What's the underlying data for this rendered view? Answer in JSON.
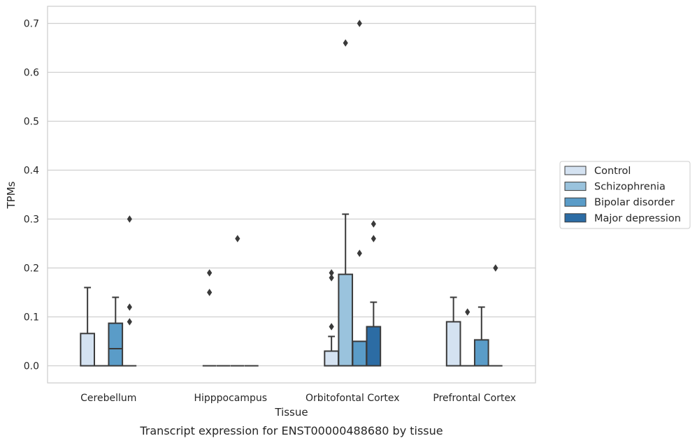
{
  "chart_data": {
    "type": "box",
    "caption": "Transcript expression for ENST00000488680 by tissue",
    "xlabel": "Tissue",
    "ylabel": "TPMs",
    "ylim": [
      -0.035,
      0.735
    ],
    "yticks": [
      0.0,
      0.1,
      0.2,
      0.3,
      0.4,
      0.5,
      0.6,
      0.7
    ],
    "ytick_labels": [
      "0.0",
      "0.1",
      "0.2",
      "0.3",
      "0.4",
      "0.5",
      "0.6",
      "0.7"
    ],
    "grid": true,
    "legend_position": "right",
    "categories": [
      "Cerebellum",
      "Hipppocampus",
      "Orbitofontal Cortex",
      "Prefrontal Cortex"
    ],
    "series": [
      {
        "name": "Control",
        "color": "#d4e2f1",
        "boxes": [
          {
            "min": 0.0,
            "q1": 0.0,
            "median": 0.0,
            "q3": 0.066,
            "max": 0.16,
            "outliers": []
          },
          {
            "min": 0.0,
            "q1": 0.0,
            "median": 0.0,
            "q3": 0.0,
            "max": 0.0,
            "outliers": [
              0.15,
              0.19
            ]
          },
          {
            "min": 0.0,
            "q1": 0.0,
            "median": 0.0,
            "q3": 0.03,
            "max": 0.06,
            "outliers": [
              0.08,
              0.18,
              0.19
            ]
          },
          {
            "min": 0.0,
            "q1": 0.0,
            "median": 0.0,
            "q3": 0.09,
            "max": 0.14,
            "outliers": []
          }
        ]
      },
      {
        "name": "Schizophrenia",
        "color": "#9ac3dd",
        "boxes": [
          {
            "min": 0.0,
            "q1": 0.0,
            "median": 0.0,
            "q3": 0.0,
            "max": 0.0,
            "outliers": []
          },
          {
            "min": 0.0,
            "q1": 0.0,
            "median": 0.0,
            "q3": 0.0,
            "max": 0.0,
            "outliers": []
          },
          {
            "min": 0.0,
            "q1": 0.0,
            "median": 0.0,
            "q3": 0.187,
            "max": 0.31,
            "outliers": [
              0.66
            ]
          },
          {
            "min": 0.0,
            "q1": 0.0,
            "median": 0.0,
            "q3": 0.0,
            "max": 0.0,
            "outliers": [
              0.11
            ]
          }
        ]
      },
      {
        "name": "Bipolar disorder",
        "color": "#5a9cc8",
        "boxes": [
          {
            "min": 0.0,
            "q1": 0.0,
            "median": 0.035,
            "q3": 0.087,
            "max": 0.14,
            "outliers": []
          },
          {
            "min": 0.0,
            "q1": 0.0,
            "median": 0.0,
            "q3": 0.0,
            "max": 0.0,
            "outliers": [
              0.26
            ]
          },
          {
            "min": 0.0,
            "q1": 0.0,
            "median": 0.0,
            "q3": 0.05,
            "max": 0.05,
            "outliers": [
              0.23,
              0.7
            ]
          },
          {
            "min": 0.0,
            "q1": 0.0,
            "median": 0.0,
            "q3": 0.053,
            "max": 0.12,
            "outliers": []
          }
        ]
      },
      {
        "name": "Major depression",
        "color": "#2c6ca4",
        "boxes": [
          {
            "min": 0.0,
            "q1": 0.0,
            "median": 0.0,
            "q3": 0.0,
            "max": 0.0,
            "outliers": [
              0.09,
              0.12,
              0.3
            ]
          },
          {
            "min": 0.0,
            "q1": 0.0,
            "median": 0.0,
            "q3": 0.0,
            "max": 0.0,
            "outliers": []
          },
          {
            "min": 0.0,
            "q1": 0.0,
            "median": 0.0,
            "q3": 0.08,
            "max": 0.13,
            "outliers": [
              0.26,
              0.29
            ]
          },
          {
            "min": 0.0,
            "q1": 0.0,
            "median": 0.0,
            "q3": 0.0,
            "max": 0.0,
            "outliers": [
              0.2
            ]
          }
        ]
      }
    ]
  }
}
